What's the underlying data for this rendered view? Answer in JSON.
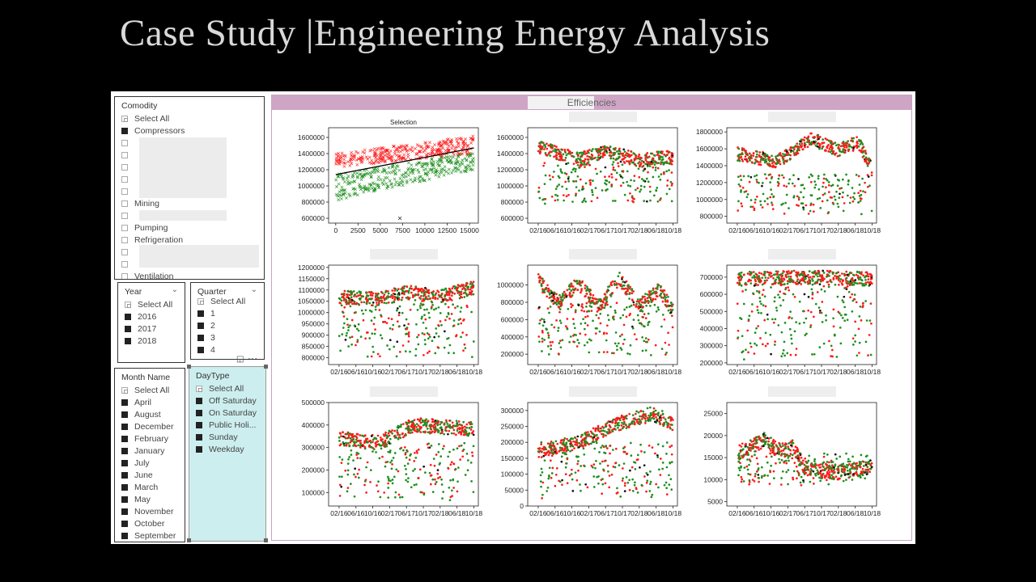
{
  "page": {
    "title": "Case Study |Engineering Energy Analysis"
  },
  "colors": {
    "red": "#ff1a1a",
    "green": "#1e8f1e",
    "black": "#111111",
    "efficiencies_bar": "#cfa5c6",
    "daytype_bg": "#cdeeee"
  },
  "slicers": {
    "commodity": {
      "header": "Comodity",
      "select_all": "Select All",
      "items": [
        {
          "label": "Compressors",
          "checked": true
        },
        {
          "label": "",
          "checked": false
        },
        {
          "label": "",
          "checked": false
        },
        {
          "label": "",
          "checked": false
        },
        {
          "label": "",
          "checked": false
        },
        {
          "label": "",
          "checked": false
        },
        {
          "label": "Mining",
          "checked": false
        },
        {
          "label": "",
          "checked": false
        },
        {
          "label": "Pumping",
          "checked": false
        },
        {
          "label": "Refrigeration",
          "checked": false
        },
        {
          "label": "",
          "checked": false
        },
        {
          "label": "",
          "checked": false
        },
        {
          "label": "Ventilation",
          "checked": false
        }
      ]
    },
    "year": {
      "header": "Year",
      "select_all": "Select All",
      "items": [
        "2016",
        "2017",
        "2018"
      ]
    },
    "quarter": {
      "header": "Quarter",
      "select_all": "Select All",
      "items": [
        "1",
        "2",
        "3",
        "4"
      ]
    },
    "month": {
      "header": "Month Name",
      "select_all": "Select All",
      "items": [
        "April",
        "August",
        "December",
        "February",
        "January",
        "July",
        "June",
        "March",
        "May",
        "November",
        "October",
        "September"
      ]
    },
    "daytype": {
      "header": "DayType",
      "select_all": "Select All",
      "items": [
        "Off Saturday",
        "On Saturday",
        "Public Holi...",
        "Sunday",
        "Weekday"
      ]
    }
  },
  "panel": {
    "title": "Efficiencies"
  },
  "chart_data": [
    {
      "type": "scatter",
      "title": "Selection",
      "marker": "x",
      "x_ticks": [
        "0",
        "2500",
        "5000",
        "7500",
        "10000",
        "12500",
        "15000"
      ],
      "xlim": [
        -800,
        16000
      ],
      "y_ticks": [
        600000,
        800000,
        1000000,
        1200000,
        1400000,
        1600000
      ],
      "ylim": [
        540000,
        1720000
      ],
      "trend": {
        "x": [
          0,
          15500
        ],
        "y": [
          1140000,
          1470000
        ]
      },
      "series": [
        {
          "color": "red",
          "x_range": [
            0,
            15500
          ],
          "y_start": [
            1230000,
            1400000
          ],
          "y_end": [
            1400000,
            1620000
          ]
        },
        {
          "color": "green",
          "x_range": [
            0,
            15500
          ],
          "y_start": [
            820000,
            1150000
          ],
          "y_end": [
            1200000,
            1420000
          ]
        }
      ],
      "outlier": {
        "x": 7200,
        "y": 600000
      }
    },
    {
      "type": "scatter",
      "title": "",
      "x_ticks": [
        "02/16",
        "06/16",
        "10/16",
        "02/17",
        "06/17",
        "10/17",
        "02/18",
        "06/18",
        "10/18"
      ],
      "y_ticks": [
        600000,
        800000,
        1000000,
        1200000,
        1400000,
        1600000
      ],
      "ylim": [
        540000,
        1720000
      ],
      "upper_band": [
        [
          0,
          1480000
        ],
        [
          0.3,
          1330000
        ],
        [
          0.5,
          1430000
        ],
        [
          0.75,
          1320000
        ],
        [
          1,
          1360000
        ]
      ],
      "lower_range": [
        780000,
        1300000
      ]
    },
    {
      "type": "scatter",
      "title": "",
      "x_ticks": [
        "02/16",
        "06/16",
        "10/16",
        "02/17",
        "06/17",
        "10/17",
        "02/18",
        "06/18",
        "10/18"
      ],
      "y_ticks": [
        800000,
        1000000,
        1200000,
        1400000,
        1600000,
        1800000
      ],
      "ylim": [
        720000,
        1850000
      ],
      "upper_band": [
        [
          0,
          1540000
        ],
        [
          0.3,
          1450000
        ],
        [
          0.55,
          1720000
        ],
        [
          0.75,
          1580000
        ],
        [
          0.9,
          1680000
        ],
        [
          1,
          1350000
        ]
      ],
      "lower_range": [
        820000,
        1300000
      ]
    },
    {
      "type": "scatter",
      "title": "",
      "x_ticks": [
        "02/16",
        "06/16",
        "10/16",
        "02/17",
        "06/17",
        "10/17",
        "02/18",
        "06/18",
        "10/18"
      ],
      "y_ticks": [
        800000,
        850000,
        900000,
        950000,
        1000000,
        1050000,
        1100000,
        1150000,
        1200000
      ],
      "ylim": [
        770000,
        1210000
      ],
      "upper_band": [
        [
          0,
          1070000
        ],
        [
          0.3,
          1060000
        ],
        [
          0.5,
          1090000
        ],
        [
          0.75,
          1070000
        ],
        [
          1,
          1110000
        ]
      ],
      "lower_range": [
        800000,
        1040000
      ]
    },
    {
      "type": "scatter",
      "title": "",
      "x_ticks": [
        "02/16",
        "06/16",
        "10/16",
        "02/17",
        "06/17",
        "10/17",
        "02/18",
        "06/18",
        "10/18"
      ],
      "y_ticks": [
        200000,
        400000,
        600000,
        800000,
        1000000
      ],
      "ylim": [
        80000,
        1230000
      ],
      "upper_band": [
        [
          0,
          1050000
        ],
        [
          0.15,
          800000
        ],
        [
          0.3,
          1020000
        ],
        [
          0.45,
          750000
        ],
        [
          0.6,
          1080000
        ],
        [
          0.75,
          760000
        ],
        [
          0.9,
          950000
        ],
        [
          1,
          700000
        ]
      ],
      "lower_range": [
        180000,
        800000
      ]
    },
    {
      "type": "scatter",
      "title": "",
      "x_ticks": [
        "02/16",
        "06/16",
        "10/16",
        "02/17",
        "06/17",
        "10/17",
        "02/18",
        "06/18",
        "10/18"
      ],
      "y_ticks": [
        200000,
        300000,
        400000,
        500000,
        600000,
        700000
      ],
      "ylim": [
        190000,
        770000
      ],
      "upper_band": [
        [
          0,
          690000
        ],
        [
          0.5,
          700000
        ],
        [
          1,
          690000
        ]
      ],
      "lower_range": [
        220000,
        660000
      ]
    },
    {
      "type": "scatter",
      "title": "",
      "x_ticks": [
        "02/16",
        "06/16",
        "10/16",
        "02/17",
        "06/17",
        "10/17",
        "02/18",
        "06/18",
        "10/18"
      ],
      "y_ticks": [
        100000,
        200000,
        300000,
        400000,
        500000
      ],
      "ylim": [
        40000,
        500000
      ],
      "upper_band": [
        [
          0,
          340000
        ],
        [
          0.3,
          320000
        ],
        [
          0.55,
          400000
        ],
        [
          0.8,
          390000
        ],
        [
          1,
          380000
        ]
      ],
      "lower_range": [
        60000,
        320000
      ]
    },
    {
      "type": "scatter",
      "title": "",
      "x_ticks": [
        "02/16",
        "06/16",
        "10/16",
        "02/17",
        "06/17",
        "10/17",
        "02/18",
        "06/18",
        "10/18"
      ],
      "y_ticks": [
        0,
        50000,
        100000,
        150000,
        200000,
        250000,
        300000
      ],
      "ylim": [
        0,
        325000
      ],
      "upper_band": [
        [
          0,
          170000
        ],
        [
          0.3,
          200000
        ],
        [
          0.6,
          260000
        ],
        [
          0.85,
          290000
        ],
        [
          1,
          260000
        ]
      ],
      "lower_range": [
        20000,
        200000
      ]
    },
    {
      "type": "scatter",
      "title": "",
      "x_ticks": [
        "02/16",
        "06/16",
        "10/16",
        "02/17",
        "06/17",
        "10/17",
        "02/18",
        "06/18",
        "10/18"
      ],
      "y_ticks": [
        5000,
        10000,
        15000,
        20000,
        25000
      ],
      "ylim": [
        4000,
        27500
      ],
      "upper_band": [
        [
          0,
          16000
        ],
        [
          0.2,
          19000
        ],
        [
          0.32,
          16500
        ],
        [
          0.42,
          17500
        ],
        [
          0.5,
          12500
        ],
        [
          0.75,
          11500
        ],
        [
          1,
          13000
        ]
      ],
      "lower_range": [
        8500,
        16000
      ]
    }
  ]
}
